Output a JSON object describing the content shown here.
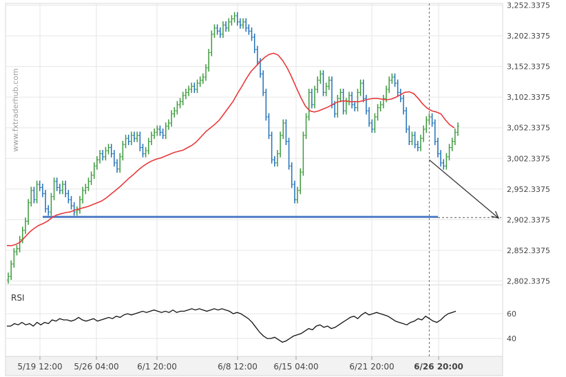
{
  "watermark": "www.fxtraderhub.com",
  "colors": {
    "up_bar": "#3a9a3a",
    "down_bar": "#1f6fb8",
    "moving_average": "#e8383a",
    "support_line": "#4d7cc7",
    "arrow": "#333333",
    "rsi_line": "#111111",
    "grid": "#e6e6e6"
  },
  "chart_data": [
    {
      "type": "ohlc-bar",
      "title": "",
      "xlabel": "",
      "ylabel": "",
      "x_tick_labels": [
        "5/19 12:00",
        "5/26 04:00",
        "6/1 20:00",
        "6/8 12:00",
        "6/15 04:00",
        "6/21 20:00",
        "6/26 20:00"
      ],
      "y_tick_labels": [
        "3,252.3375",
        "3,202.3375",
        "3,152.3375",
        "3,102.3375",
        "3,052.3375",
        "3,002.3375",
        "2,952.3375",
        "2,902.3375",
        "2,852.3375",
        "2,802.3375"
      ],
      "ylim": [
        2752.3375,
        3262.3375
      ],
      "grid": true,
      "bar_closes": [
        2810,
        2830,
        2850,
        2855,
        2870,
        2885,
        2900,
        2930,
        2950,
        2935,
        2960,
        2955,
        2945,
        2920,
        2915,
        2940,
        2965,
        2955,
        2950,
        2960,
        2945,
        2935,
        2925,
        2915,
        2918,
        2935,
        2950,
        2955,
        2965,
        2975,
        2990,
        3000,
        3010,
        3005,
        3015,
        3020,
        3010,
        2995,
        2985,
        3005,
        3025,
        3035,
        3030,
        3040,
        3035,
        3040,
        3020,
        3010,
        3015,
        3030,
        3040,
        3045,
        3050,
        3045,
        3040,
        3055,
        3060,
        3075,
        3080,
        3090,
        3095,
        3105,
        3110,
        3115,
        3120,
        3115,
        3125,
        3130,
        3135,
        3150,
        3175,
        3205,
        3215,
        3210,
        3205,
        3220,
        3215,
        3225,
        3230,
        3235,
        3225,
        3220,
        3225,
        3215,
        3210,
        3200,
        3180,
        3160,
        3140,
        3110,
        3070,
        3040,
        3000,
        2995,
        3010,
        3040,
        3060,
        3030,
        2990,
        2960,
        2935,
        2950,
        2980,
        3040,
        3070,
        3110,
        3090,
        3115,
        3130,
        3140,
        3110,
        3120,
        3130,
        3090,
        3075,
        3100,
        3110,
        3080,
        3095,
        3105,
        3090,
        3085,
        3110,
        3125,
        3100,
        3080,
        3060,
        3050,
        3070,
        3085,
        3090,
        3100,
        3115,
        3130,
        3135,
        3125,
        3110,
        3100,
        3080,
        3050,
        3030,
        3040,
        3025,
        3020,
        3035,
        3050,
        3065,
        3070,
        3060,
        3030,
        3010,
        2995,
        2990,
        3005,
        3020,
        3030,
        3045,
        3055
      ],
      "moving_average": [
        2860,
        2860,
        2862,
        2866,
        2874,
        2882,
        2888,
        2893,
        2896,
        2900,
        2906,
        2910,
        2912,
        2914,
        2915,
        2918,
        2920,
        2922,
        2924,
        2927,
        2930,
        2933,
        2938,
        2944,
        2950,
        2956,
        2963,
        2970,
        2976,
        2983,
        2989,
        2994,
        2998,
        3001,
        3003,
        3006,
        3009,
        3012,
        3014,
        3016,
        3020,
        3024,
        3030,
        3038,
        3046,
        3052,
        3058,
        3065,
        3075,
        3085,
        3095,
        3108,
        3120,
        3133,
        3144,
        3152,
        3160,
        3167,
        3172,
        3174,
        3171,
        3162,
        3150,
        3135,
        3118,
        3102,
        3088,
        3080,
        3078,
        3080,
        3083,
        3086,
        3090,
        3094,
        3096,
        3096,
        3095,
        3095,
        3095,
        3097,
        3099,
        3100,
        3100,
        3099,
        3098,
        3099,
        3102,
        3106,
        3110,
        3111,
        3108,
        3100,
        3091,
        3084,
        3080,
        3078,
        3075,
        3065,
        3057,
        3052
      ],
      "support_level": 2907,
      "support_level_text": "",
      "forecast_arrow": {
        "from_index": 147,
        "from_value": 3000,
        "to_value": 2905
      },
      "current_time_marker_index": 147
    },
    {
      "type": "line",
      "title": "RSI",
      "y_tick_labels": [
        "60",
        "40"
      ],
      "ylim": [
        30,
        75
      ],
      "values": [
        50,
        50,
        52,
        51,
        53,
        51,
        52,
        50,
        53,
        51,
        53,
        52,
        55,
        54,
        56,
        55,
        55,
        54,
        55,
        57,
        55,
        54,
        55,
        56,
        54,
        55,
        56,
        57,
        56,
        58,
        57,
        59,
        60,
        59,
        60,
        61,
        62,
        61,
        62,
        63,
        62,
        61,
        62,
        61,
        63,
        61,
        62,
        62,
        63,
        64,
        63,
        64,
        63,
        62,
        63,
        64,
        63,
        64,
        63,
        62,
        60,
        61,
        60,
        58,
        56,
        53,
        49,
        45,
        42,
        40,
        40,
        41,
        39,
        37,
        38,
        40,
        42,
        43,
        44,
        46,
        48,
        47,
        50,
        51,
        49,
        50,
        48,
        49,
        51,
        53,
        55,
        57,
        58,
        56,
        59,
        61,
        59,
        60,
        61,
        60,
        59,
        58,
        56,
        54,
        53,
        52,
        51,
        53,
        54,
        56,
        55,
        58,
        56,
        54,
        53,
        55,
        58,
        60,
        61,
        62
      ]
    }
  ]
}
